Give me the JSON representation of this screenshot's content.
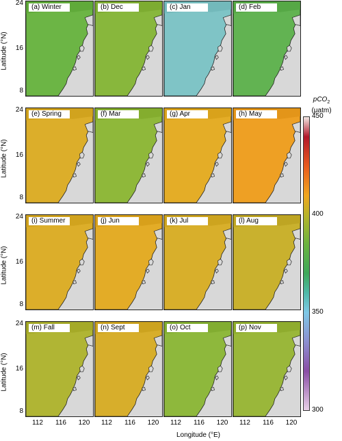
{
  "colorbar": {
    "title_line1": "pCO",
    "title_sub": "2",
    "title_line2": "(μatm)",
    "ticks": [
      "450",
      "400",
      "350",
      "300"
    ],
    "range": [
      300,
      450
    ],
    "stops": [
      {
        "v": 450,
        "c": "#f2e8e4"
      },
      {
        "v": 440,
        "c": "#b2182b"
      },
      {
        "v": 425,
        "c": "#e85a1e"
      },
      {
        "v": 410,
        "c": "#f0a61f"
      },
      {
        "v": 400,
        "c": "#b9b42a"
      },
      {
        "v": 385,
        "c": "#6cb33f"
      },
      {
        "v": 370,
        "c": "#3fa85a"
      },
      {
        "v": 360,
        "c": "#4fb8a8"
      },
      {
        "v": 350,
        "c": "#7fc8e6"
      },
      {
        "v": 335,
        "c": "#8c8fd0"
      },
      {
        "v": 320,
        "c": "#8a4ea5"
      },
      {
        "v": 300,
        "c": "#e8d0e8"
      }
    ]
  },
  "axes": {
    "ylabel": "Latitude (°N)",
    "xlabel": "Longitude (°E)",
    "yticks": [
      "24",
      "16",
      "8"
    ],
    "xticks": [
      "112",
      "116",
      "120"
    ]
  },
  "panels": [
    {
      "label": "(a) Winter",
      "color": "#6cb545"
    },
    {
      "label": "(b) Dec",
      "color": "#88b73c"
    },
    {
      "label": "(c) Jan",
      "color": "#7fc4c6"
    },
    {
      "label": "(d) Feb",
      "color": "#62b352"
    },
    {
      "label": "(e) Spring",
      "color": "#dcae2a"
    },
    {
      "label": "(f) Mar",
      "color": "#8fb83a"
    },
    {
      "label": "(g) Apr",
      "color": "#e4ad27"
    },
    {
      "label": "(h) May",
      "color": "#eea024"
    },
    {
      "label": "(i) Summer",
      "color": "#dcae2a"
    },
    {
      "label": "(j) Jun",
      "color": "#e3ac27"
    },
    {
      "label": "(k) Jul",
      "color": "#d8af2b"
    },
    {
      "label": "(l) Aug",
      "color": "#c9b12e"
    },
    {
      "label": "(m) Fall",
      "color": "#b0b534"
    },
    {
      "label": "(n) Sept",
      "color": "#d7ae2b"
    },
    {
      "label": "(o) Oct",
      "color": "#8eb83c"
    },
    {
      "label": "(p) Nov",
      "color": "#9ab73a"
    }
  ]
}
